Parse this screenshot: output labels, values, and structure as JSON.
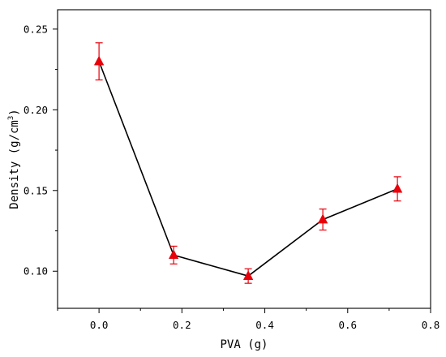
{
  "chart_data": {
    "type": "line",
    "title": "",
    "xlabel": "PVA (g)",
    "ylabel": "Density (g/cm",
    "ylabel_superscript": "3",
    "ylabel_suffix": ")",
    "xlim": [
      -0.1,
      0.8
    ],
    "ylim": [
      0.077,
      0.262
    ],
    "x_ticks": [
      0.0,
      0.2,
      0.4,
      0.6,
      0.8
    ],
    "x_tick_labels": [
      "0.0",
      "0.2",
      "0.4",
      "0.6",
      "0.8"
    ],
    "y_ticks": [
      0.1,
      0.15,
      0.2,
      0.25
    ],
    "y_tick_labels": [
      "0.10",
      "0.15",
      "0.20",
      "0.25"
    ],
    "grid": false,
    "series": [
      {
        "x": [
          0.0,
          0.18,
          0.36,
          0.54,
          0.72
        ],
        "y": [
          0.23,
          0.11,
          0.097,
          0.132,
          0.151
        ],
        "error": [
          0.0115,
          0.0055,
          0.0045,
          0.0065,
          0.0075
        ],
        "line_color": "#000000",
        "marker": "triangle",
        "marker_color": "#e8000b",
        "error_color": "#e8000b"
      }
    ]
  }
}
